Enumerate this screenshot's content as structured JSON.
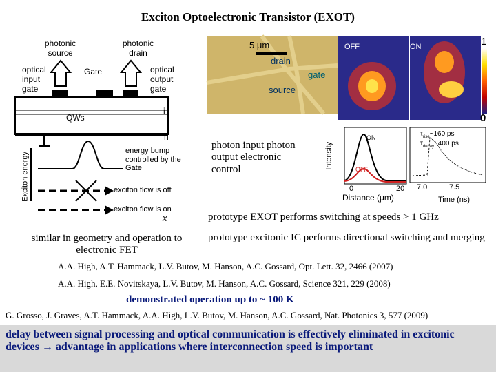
{
  "title": "Exciton Optoelectronic Transistor (EXOT)",
  "diagram": {
    "labels": {
      "photonic_source": "photonic source",
      "photonic_drain": "photonic drain",
      "optical_input_gate": "optical input gate",
      "gate": "Gate",
      "optical_output_gate": "optical output gate",
      "qws": "QWs",
      "i": "i",
      "n": "n",
      "exciton_energy": "Exciton energy",
      "energy_bump": "energy bump controlled by the Gate",
      "flow_off": "exciton flow is off",
      "flow_on": "exciton flow is on",
      "x": "x"
    },
    "caption": "similar in geometry and operation to electronic FET"
  },
  "image": {
    "scale": "5 μm",
    "drain": "drain",
    "gate": "gate",
    "source": "source",
    "off": "OFF",
    "on": "ON",
    "colorbar_max": "1",
    "colorbar_min": "0"
  },
  "note": "photon input photon output electronic control",
  "plots": {
    "intensity": "Intensity",
    "on": "ON",
    "off": "OFF",
    "x0": "0",
    "x20": "20",
    "distance": "Distance (μm)",
    "rise": {
      "symbol": "τ",
      "sub": "rise",
      "text": "~160 ps"
    },
    "decay": {
      "symbol": "τ",
      "sub": "decay",
      "text": "~400 ps"
    },
    "t70": "7.0",
    "t75": "7.5",
    "time": "Time (ns)"
  },
  "points": [
    "prototype EXOT performs switching at speeds > 1 GHz",
    "prototype excitonic IC performs directional switching and merging"
  ],
  "refs": [
    "A.A. High, A.T. Hammack, L.V. Butov, M. Hanson, A.C. Gossard, Opt. Lett. 32, 2466 (2007)",
    "A.A. High, E.E. Novitskaya, L.V. Butov, M. Hanson, A.C. Gossard, Science 321, 229 (2008)"
  ],
  "temperature": "demonstrated operation up to ~ 100 K",
  "ref3": "G. Grosso, J. Graves, A.T. Hammack, A.A. High, L.V. Butov, M. Hanson, A.C. Gossard, Nat. Photonics 3, 577 (2009)",
  "conclusion": "delay between signal processing and optical communication is effectively eliminated in excitonic devices → advantage in applications where interconnection speed is important"
}
